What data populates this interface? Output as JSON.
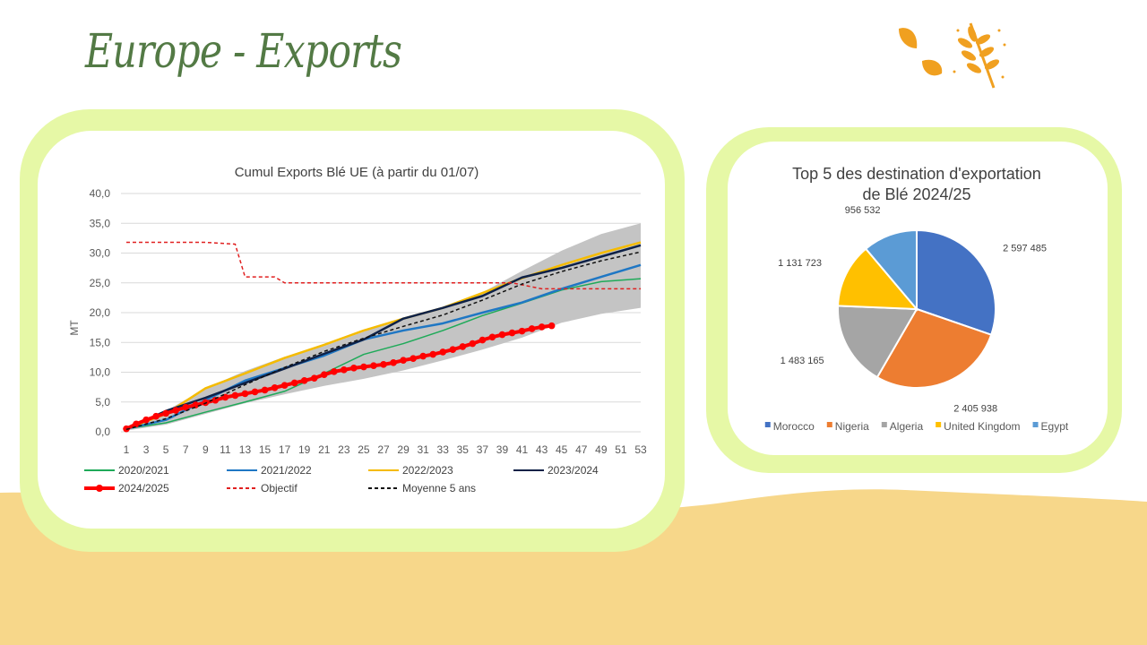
{
  "page": {
    "title": "Europe - Exports"
  },
  "colors": {
    "title": "#537a45",
    "card_border": "#e6f8a6",
    "wave": "#f7d78a",
    "deco": "#f0a020"
  },
  "chart_data": [
    {
      "type": "line",
      "title": "Cumul Exports Blé UE (à partir du 01/07)",
      "xlabel": "",
      "ylabel": "MT",
      "ylim": [
        0,
        40
      ],
      "yticks": [
        "0,0",
        "5,0",
        "10,0",
        "15,0",
        "20,0",
        "25,0",
        "30,0",
        "35,0",
        "40,0"
      ],
      "xticks": [
        "1",
        "3",
        "5",
        "7",
        "9",
        "11",
        "13",
        "15",
        "17",
        "19",
        "21",
        "23",
        "25",
        "27",
        "29",
        "31",
        "33",
        "35",
        "37",
        "39",
        "41",
        "43",
        "45",
        "47",
        "49",
        "51",
        "53"
      ],
      "grid": true,
      "legend_position": "bottom",
      "band": {
        "color": "#c4c4c4",
        "weeks": [
          1,
          5,
          9,
          13,
          17,
          21,
          25,
          29,
          33,
          37,
          41,
          45,
          49,
          53
        ],
        "low": [
          0.2,
          1.2,
          3.0,
          4.8,
          6.3,
          7.7,
          8.9,
          10.3,
          12.0,
          13.8,
          15.8,
          18.3,
          19.8,
          20.8
        ],
        "high": [
          0.8,
          3.5,
          7.3,
          10.2,
          12.6,
          14.4,
          16.8,
          19.0,
          21.0,
          23.4,
          27.0,
          30.4,
          33.2,
          35.0
        ]
      },
      "series": [
        {
          "name": "2020/2021",
          "color": "#1faa59",
          "dash": "",
          "width": 1.5,
          "markers": false,
          "x": [
            1,
            5,
            9,
            13,
            17,
            21,
            25,
            29,
            33,
            37,
            41,
            45,
            49,
            53
          ],
          "y": [
            0.5,
            1.5,
            3.3,
            5.0,
            6.8,
            9.8,
            13.0,
            14.8,
            17.0,
            19.5,
            21.6,
            23.8,
            25.2,
            25.7
          ]
        },
        {
          "name": "2021/2022",
          "color": "#1f77c4",
          "dash": "",
          "width": 2.5,
          "markers": false,
          "x": [
            1,
            5,
            9,
            13,
            17,
            21,
            25,
            29,
            33,
            37,
            41,
            45,
            49,
            53
          ],
          "y": [
            0.5,
            2.0,
            5.3,
            8.6,
            10.7,
            12.8,
            15.5,
            17.0,
            18.2,
            20.0,
            21.7,
            24.0,
            26.0,
            28.0
          ]
        },
        {
          "name": "2022/2023",
          "color": "#f5bb00",
          "dash": "",
          "width": 2.5,
          "markers": false,
          "x": [
            1,
            5,
            9,
            13,
            17,
            21,
            25,
            29,
            33,
            37,
            41,
            45,
            49,
            53
          ],
          "y": [
            0.5,
            3.0,
            7.3,
            9.8,
            12.4,
            14.6,
            17.0,
            19.0,
            20.8,
            23.3,
            25.8,
            28.0,
            30.0,
            31.8
          ]
        },
        {
          "name": "2023/2024",
          "color": "#0e2147",
          "dash": "",
          "width": 2.5,
          "markers": false,
          "x": [
            1,
            5,
            9,
            13,
            17,
            21,
            25,
            29,
            33,
            37,
            41,
            45,
            49,
            53
          ],
          "y": [
            0.5,
            3.5,
            5.7,
            8.2,
            10.6,
            13.1,
            15.5,
            19.0,
            20.8,
            22.8,
            25.9,
            27.5,
            29.4,
            31.3
          ]
        },
        {
          "name": "2024/2025",
          "color": "#ff0000",
          "dash": "",
          "width": 4,
          "markers": true,
          "x": [
            1,
            2,
            3,
            4,
            5,
            6,
            7,
            8,
            9,
            10,
            11,
            12,
            13,
            14,
            15,
            16,
            17,
            18,
            19,
            20,
            21,
            22,
            23,
            24,
            25,
            26,
            27,
            28,
            29,
            30,
            31,
            32,
            33,
            34,
            35,
            36,
            37,
            38,
            39,
            40,
            41,
            42,
            43,
            44
          ],
          "y": [
            0.5,
            1.3,
            2.0,
            2.6,
            3.1,
            3.6,
            4.1,
            4.5,
            4.9,
            5.3,
            5.8,
            6.1,
            6.4,
            6.7,
            7.0,
            7.4,
            7.8,
            8.2,
            8.6,
            9.0,
            9.6,
            10.1,
            10.4,
            10.7,
            10.9,
            11.1,
            11.3,
            11.6,
            12.0,
            12.3,
            12.7,
            13.0,
            13.4,
            13.8,
            14.3,
            14.8,
            15.4,
            15.9,
            16.3,
            16.6,
            16.9,
            17.3,
            17.6,
            17.8
          ]
        },
        {
          "name": "Objectif",
          "color": "#e02020",
          "dash": "4 3",
          "width": 1.5,
          "markers": false,
          "x": [
            1,
            9,
            12,
            13,
            16,
            17,
            40,
            43,
            53
          ],
          "y": [
            31.8,
            31.8,
            31.5,
            26.0,
            26.0,
            25.0,
            25.0,
            24.0,
            24.0
          ]
        },
        {
          "name": "Moyenne 5 ans",
          "color": "#111111",
          "dash": "4 3",
          "width": 1.5,
          "markers": false,
          "x": [
            1,
            5,
            9,
            13,
            17,
            21,
            25,
            29,
            33,
            37,
            41,
            45,
            49,
            53
          ],
          "y": [
            0.4,
            2.2,
            4.8,
            7.9,
            10.8,
            13.5,
            15.7,
            17.7,
            19.6,
            22.1,
            24.8,
            26.9,
            28.7,
            30.2
          ]
        }
      ]
    },
    {
      "type": "pie",
      "title": [
        "Top 5 des destination d'exportation",
        "de Blé 2024/25"
      ],
      "legend_position": "bottom",
      "slices": [
        {
          "label": "Morocco",
          "value": 2597485,
          "display": "2 597 485",
          "color": "#4472c4"
        },
        {
          "label": "Nigeria",
          "value": 2405938,
          "display": "2 405 938",
          "color": "#ed7d31"
        },
        {
          "label": "Algeria",
          "value": 1483165,
          "display": "1 483 165",
          "color": "#a5a5a5"
        },
        {
          "label": "United Kingdom",
          "value": 1131723,
          "display": "1 131 723",
          "color": "#ffc000"
        },
        {
          "label": "Egypt",
          "value": 956532,
          "display": "956 532",
          "color": "#5b9bd5"
        }
      ]
    }
  ]
}
